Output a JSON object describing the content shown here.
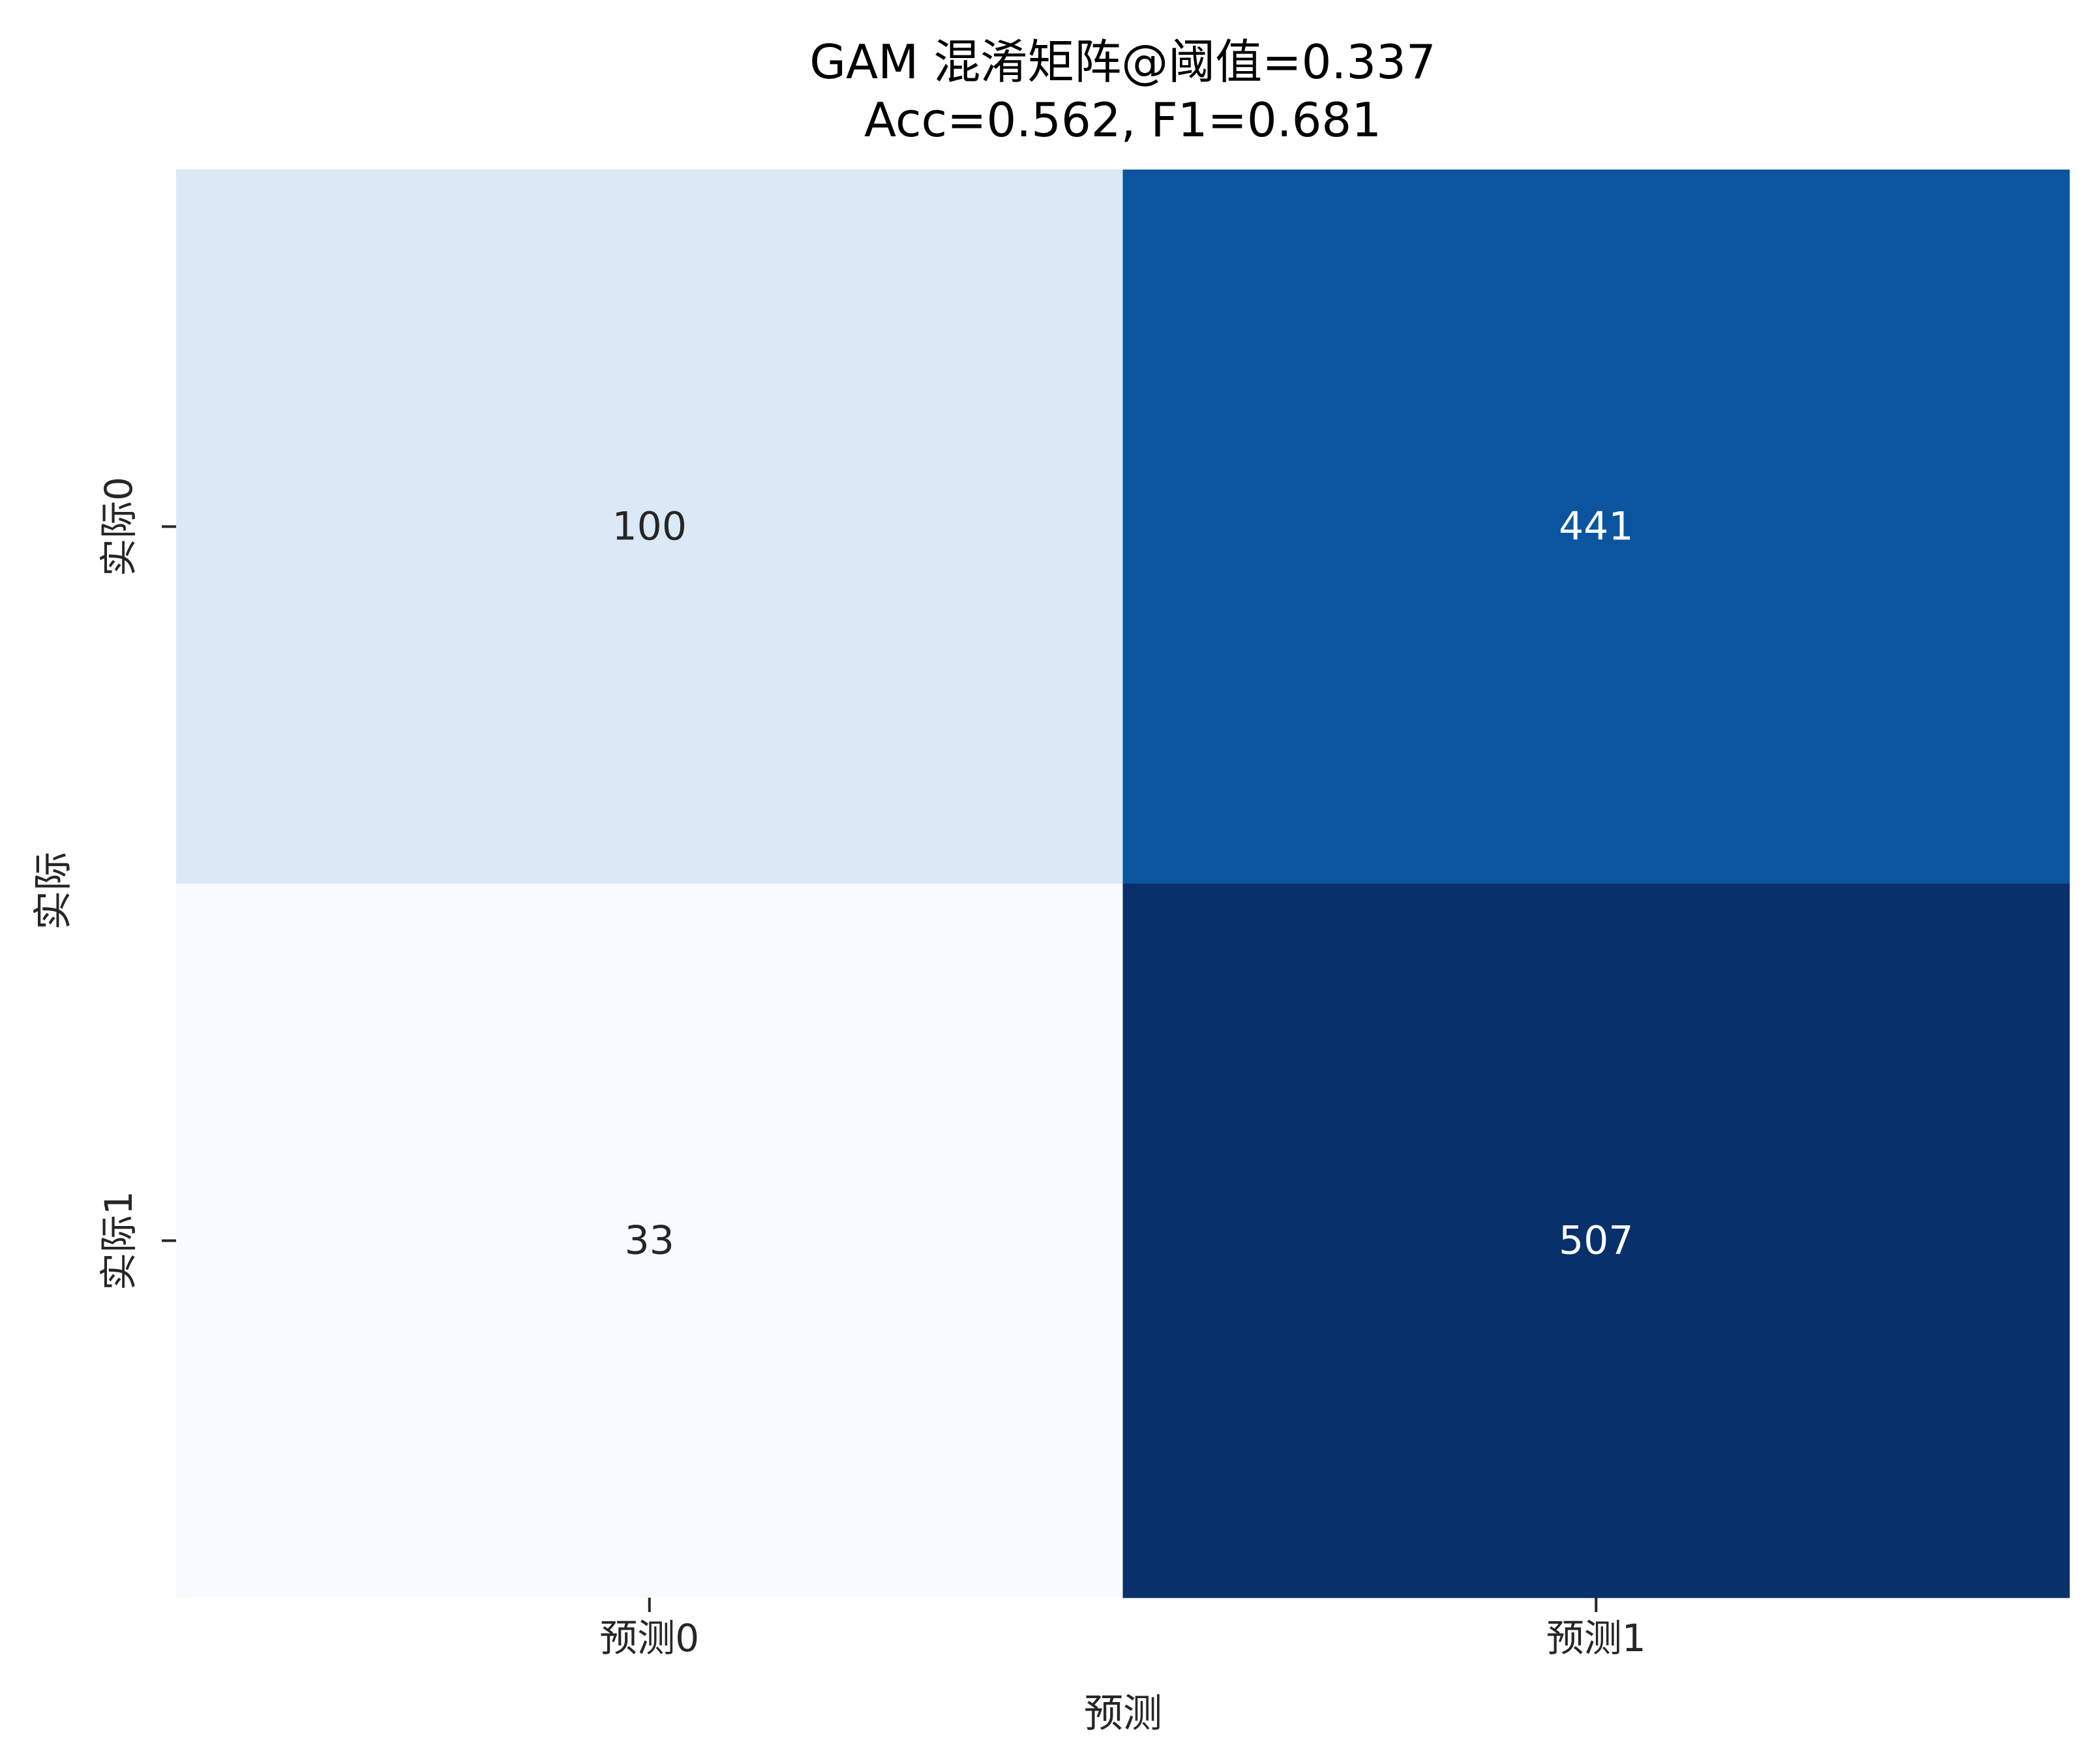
{
  "chart_data": {
    "type": "heatmap",
    "title": "GAM 混淆矩阵@阈值=0.337",
    "subtitle": "Acc=0.562, F1=0.681",
    "xlabel": "预测",
    "ylabel": "实际",
    "x_categories": [
      "预测0",
      "预测1"
    ],
    "y_categories": [
      "实际0",
      "实际1"
    ],
    "values": [
      [
        100,
        441
      ],
      [
        33,
        507
      ]
    ],
    "colormap": "Blues",
    "vmin": 33,
    "vmax": 507,
    "colorbar": false,
    "grid": false,
    "cell_colors": [
      [
        "#dbe9f6",
        "#0b559f"
      ],
      [
        "#f7fbff",
        "#08306b"
      ]
    ],
    "annotation_colors": {
      "dark_text": "#262626",
      "light_text": "#ffffff"
    }
  }
}
